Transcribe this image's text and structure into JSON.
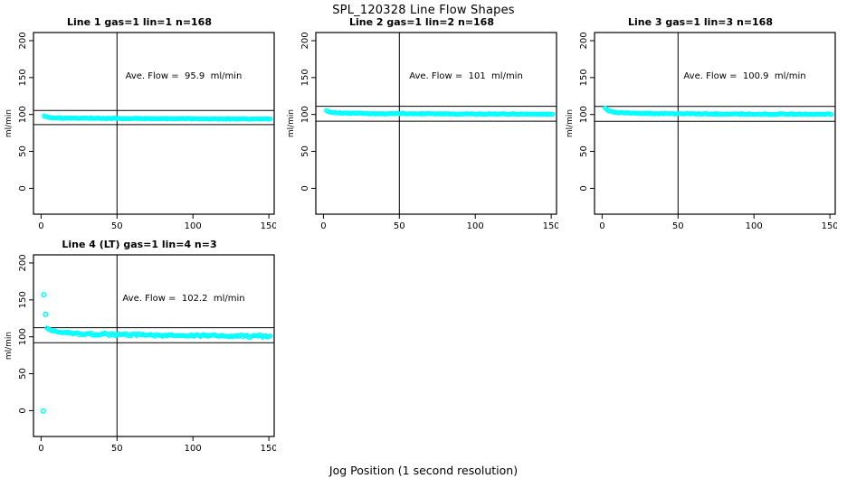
{
  "page": {
    "title": "SPL_120328  Line Flow Shapes",
    "xlabel": "Jog Position (1 second resolution)",
    "background": "#FFFFFF",
    "text_color": "#000000"
  },
  "chart_data": [
    {
      "type": "scatter",
      "title": "Line 1 gas=1 lin=1 n=168",
      "gas": 1,
      "lin": 1,
      "n": 168,
      "annotation": "Ave. Flow =  95.9  ml/min",
      "ave_flow_ml_min": 95.9,
      "ylabel": "ml/min",
      "xlim": [
        -5,
        153.5
      ],
      "ylim": [
        -35,
        211
      ],
      "xticks": [
        0,
        50,
        100,
        150
      ],
      "yticks": [
        0,
        50,
        100,
        150,
        200
      ],
      "vline_x": 50,
      "hlines": [
        105.5,
        86.3
      ],
      "point_color": "#00FFFF",
      "x_start": 2,
      "x_end": 151,
      "step": 1,
      "trend": [
        [
          2,
          98.2
        ],
        [
          5,
          96.0
        ],
        [
          15,
          95.2
        ],
        [
          60,
          94.5
        ],
        [
          151,
          93.9
        ]
      ],
      "noise": 0.55,
      "outliers": [],
      "seed": 101,
      "grid": false,
      "legend": null
    },
    {
      "type": "scatter",
      "title": "Line 2 gas=1 lin=2 n=168",
      "gas": 1,
      "lin": 2,
      "n": 168,
      "annotation": "Ave. Flow =  101  ml/min",
      "ave_flow_ml_min": 101,
      "ylabel": "ml/min",
      "xlim": [
        -5,
        153.5
      ],
      "ylim": [
        -35,
        211
      ],
      "xticks": [
        0,
        50,
        100,
        150
      ],
      "yticks": [
        0,
        50,
        100,
        150,
        200
      ],
      "vline_x": 50,
      "hlines": [
        111.1,
        90.9
      ],
      "point_color": "#00FFFF",
      "x_start": 2,
      "x_end": 151,
      "step": 1,
      "trend": [
        [
          2,
          105.5
        ],
        [
          4,
          103.5
        ],
        [
          10,
          102.0
        ],
        [
          30,
          101.2
        ],
        [
          151,
          100.4
        ]
      ],
      "noise": 0.55,
      "outliers": [],
      "seed": 202,
      "grid": false,
      "legend": null
    },
    {
      "type": "scatter",
      "title": "Line 3 gas=1 lin=3 n=168",
      "gas": 1,
      "lin": 3,
      "n": 168,
      "annotation": "Ave. Flow =  100.9  ml/min",
      "ave_flow_ml_min": 100.9,
      "ylabel": "ml/min",
      "xlim": [
        -5,
        153.5
      ],
      "ylim": [
        -35,
        211
      ],
      "xticks": [
        0,
        50,
        100,
        150
      ],
      "yticks": [
        0,
        50,
        100,
        150,
        200
      ],
      "vline_x": 50,
      "hlines": [
        111.0,
        90.8
      ],
      "point_color": "#00FFFF",
      "x_start": 2,
      "x_end": 151,
      "step": 1,
      "trend": [
        [
          2,
          108.5
        ],
        [
          4,
          105.5
        ],
        [
          8,
          103.0
        ],
        [
          20,
          101.6
        ],
        [
          60,
          100.8
        ],
        [
          151,
          100.2
        ]
      ],
      "noise": 0.6,
      "outliers": [],
      "seed": 303,
      "grid": false,
      "legend": null
    },
    {
      "type": "scatter",
      "title": "Line 4 (LT) gas=1 lin=4 n=3",
      "gas": 1,
      "lin": 4,
      "n": 3,
      "annotation": "Ave. Flow =  102.2  ml/min",
      "ave_flow_ml_min": 102.2,
      "ylabel": "ml/min",
      "xlim": [
        -5,
        153.5
      ],
      "ylim": [
        -35,
        211
      ],
      "xticks": [
        0,
        50,
        100,
        150
      ],
      "yticks": [
        0,
        50,
        100,
        150,
        200
      ],
      "vline_x": 50,
      "hlines": [
        112.4,
        92.0
      ],
      "point_color": "#00FFFF",
      "x_start": 4,
      "x_end": 151,
      "step": 1,
      "trend": [
        [
          4,
          112.0
        ],
        [
          7,
          108.5
        ],
        [
          12,
          106.0
        ],
        [
          25,
          104.0
        ],
        [
          60,
          102.5
        ],
        [
          100,
          101.6
        ],
        [
          151,
          100.6
        ]
      ],
      "noise": 1.6,
      "outliers": [
        [
          1.8,
          157
        ],
        [
          3,
          130.5
        ],
        [
          1.5,
          -0.5
        ]
      ],
      "seed": 404,
      "grid": false,
      "legend": null
    }
  ]
}
